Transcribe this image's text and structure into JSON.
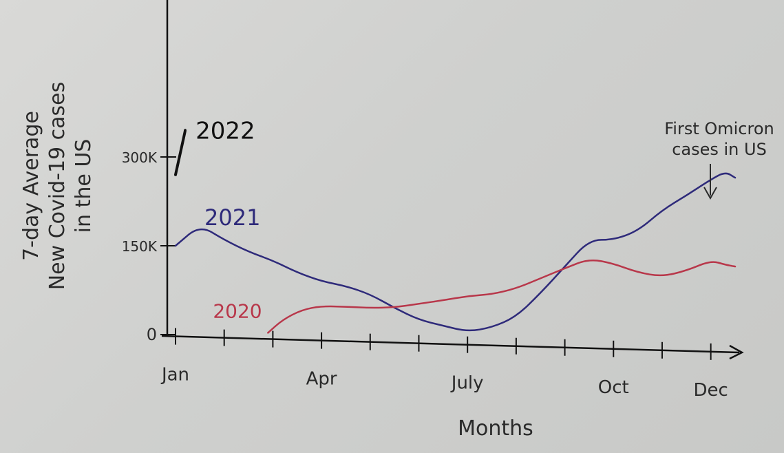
{
  "chart_data": {
    "type": "line",
    "ylabel_lines": [
      "7-day Average",
      "New Covid-19 cases",
      "in the US"
    ],
    "xlabel": "Months",
    "x_ticks": [
      "Jan",
      "Apr",
      "July",
      "Oct",
      "Dec"
    ],
    "y_ticks": [
      "0",
      "150K",
      "300K"
    ],
    "x_range": [
      1,
      12.5
    ],
    "y_range": [
      0,
      300000
    ],
    "series": [
      {
        "name": "2021",
        "color": "#2e2a7a",
        "x": [
          1,
          1.5,
          2,
          2.5,
          3,
          3.5,
          4,
          4.5,
          5,
          5.5,
          6,
          6.5,
          7,
          7.5,
          8,
          8.5,
          9,
          9.5,
          10,
          10.5,
          11,
          11.5,
          12,
          12.3,
          12.5
        ],
        "y": [
          150000,
          185000,
          160000,
          140000,
          125000,
          105000,
          90000,
          82000,
          68000,
          45000,
          25000,
          15000,
          5000,
          12000,
          30000,
          70000,
          115000,
          160000,
          160000,
          175000,
          210000,
          235000,
          262000,
          275000,
          265000
        ]
      },
      {
        "name": "2020",
        "color": "#b8374a",
        "x": [
          2.9,
          3.2,
          3.6,
          4,
          4.5,
          5,
          5.5,
          6,
          6.5,
          7,
          7.5,
          8,
          8.5,
          9,
          9.5,
          10,
          10.5,
          11,
          11.5,
          12,
          12.3,
          12.5
        ],
        "y": [
          3000,
          25000,
          42000,
          48000,
          47000,
          45000,
          46000,
          52000,
          58000,
          65000,
          68000,
          78000,
          95000,
          112000,
          128000,
          120000,
          105000,
          98000,
          108000,
          125000,
          118000,
          115000
        ]
      },
      {
        "name": "2022",
        "color": "#111111",
        "x": [
          1,
          1.2
        ],
        "y": [
          270000,
          345000
        ]
      }
    ],
    "annotations": [
      {
        "text_lines": [
          "First Omicron",
          "cases in US"
        ],
        "x": 12,
        "y": 272000
      }
    ]
  }
}
